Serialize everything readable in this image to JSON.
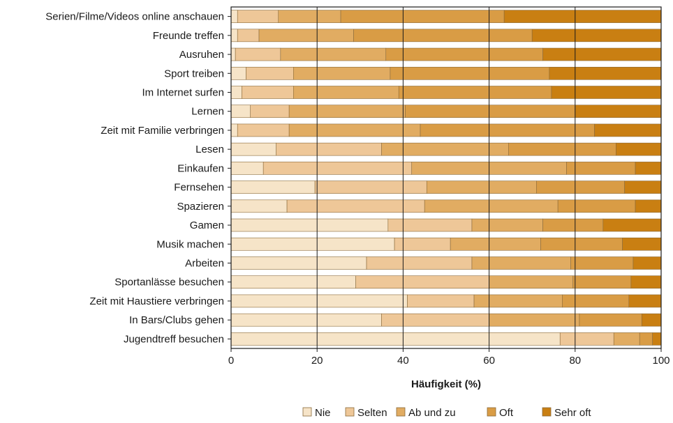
{
  "chart_data": {
    "type": "bar",
    "orientation": "horizontal",
    "stacked": true,
    "xlabel": "Häufigkeit (%)",
    "ylabel": "",
    "xlim": [
      0,
      100
    ],
    "xticks": [
      0,
      20,
      40,
      60,
      80,
      100
    ],
    "grid": true,
    "legend_position": "bottom",
    "categories": [
      "Serien/Filme/Videos online anschauen",
      "Freunde treffen",
      "Ausruhen",
      "Sport treiben",
      "Im Internet surfen",
      "Lernen",
      "Zeit mit Familie verbringen",
      "Lesen",
      "Einkaufen",
      "Fernsehen",
      "Spazieren",
      "Gamen",
      "Musik machen",
      "Arbeiten",
      "Sportanlässe besuchen",
      "Zeit mit Haustiere verbringen",
      "In Bars/Clubs gehen",
      "Jugendtreff besuchen"
    ],
    "series": [
      {
        "name": "Nie",
        "color": "#f6e4c8",
        "values": [
          1.5,
          1.5,
          1,
          3.5,
          2.5,
          4.5,
          1.5,
          10.5,
          7.5,
          19.5,
          13,
          36.5,
          38,
          31.5,
          29,
          41,
          35,
          76.5
        ]
      },
      {
        "name": "Selten",
        "color": "#eec798",
        "values": [
          9.5,
          5,
          10.5,
          11,
          12,
          9,
          12,
          24.5,
          34.5,
          26,
          32,
          19.5,
          13,
          24.5,
          31,
          15.5,
          25,
          12.5
        ]
      },
      {
        "name": "Ab und zu",
        "color": "#e1ac62",
        "values": [
          14.5,
          22,
          24.5,
          22.5,
          24.5,
          27,
          30.5,
          29.5,
          36,
          25.5,
          31,
          16.5,
          21,
          23,
          19.5,
          20.5,
          21,
          6
        ]
      },
      {
        "name": "Oft",
        "color": "#d99c45",
        "values": [
          38,
          41.5,
          36.5,
          37,
          35.5,
          39.5,
          40.5,
          25,
          16,
          20.5,
          18,
          14,
          19,
          14.5,
          13.5,
          15.5,
          14.5,
          3
        ]
      },
      {
        "name": "Sehr oft",
        "color": "#c97f12",
        "values": [
          36.5,
          30,
          27.5,
          26,
          25.5,
          20,
          15.5,
          10.5,
          6,
          8.5,
          6,
          13.5,
          9,
          6.5,
          7,
          7.5,
          4.5,
          2
        ]
      }
    ]
  }
}
